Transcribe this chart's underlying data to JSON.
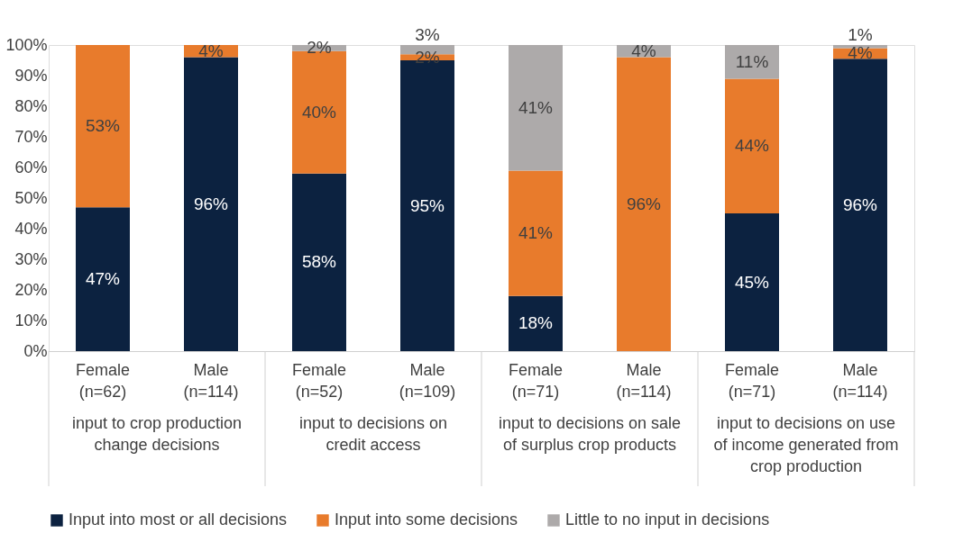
{
  "chart_data": {
    "type": "bar",
    "stacked": true,
    "categories": [
      "Female (n=62)",
      "Male (n=114)",
      "Female (n=52)",
      "Male (n=109)",
      "Female (n=71)",
      "Male (n=114)",
      "Female (n=71)",
      "Male (n=114)"
    ],
    "series": [
      {
        "name": "Input into most or all decisions",
        "color": "#0c2240",
        "values": [
          47,
          96,
          58,
          95,
          18,
          0,
          45,
          95.5
        ],
        "value_labels": [
          "47%",
          "96%",
          "58%",
          "95%",
          "18%",
          null,
          "45%",
          "96%"
        ]
      },
      {
        "name": "Input into some decisions",
        "color": "#e87b2c",
        "values": [
          53,
          4,
          40,
          2,
          41,
          96,
          44,
          3.5
        ],
        "value_labels": [
          "53%",
          "4%",
          "40%",
          "2%",
          "41%",
          "96%",
          "44%",
          "4%"
        ]
      },
      {
        "name": "Little to no input in decisions",
        "color": "#adaaaa",
        "values": [
          0,
          0,
          2,
          3,
          41,
          4,
          11,
          1
        ],
        "value_labels": [
          null,
          null,
          "2%",
          "3%",
          "41%",
          "4%",
          "11%",
          "1%"
        ]
      }
    ],
    "annotations": [
      "input to crop production change decisions",
      "input to decisions on credit access",
      "input to decisions on sale of surplus crop products",
      "input to decisions on use of income generated from crop production"
    ],
    "ylim": [
      0,
      100
    ],
    "yticks": [
      {
        "value": 0,
        "label": "0%"
      },
      {
        "value": 10,
        "label": "10%"
      },
      {
        "value": 20,
        "label": "20%"
      },
      {
        "value": 30,
        "label": "30%"
      },
      {
        "value": 40,
        "label": "40%"
      },
      {
        "value": 50,
        "label": "50%"
      },
      {
        "value": 60,
        "label": "60%"
      },
      {
        "value": 70,
        "label": "70%"
      },
      {
        "value": 80,
        "label": "80%"
      },
      {
        "value": 90,
        "label": "90%"
      },
      {
        "value": 100,
        "label": "100%"
      }
    ],
    "grid": false,
    "legend": "bottom"
  }
}
